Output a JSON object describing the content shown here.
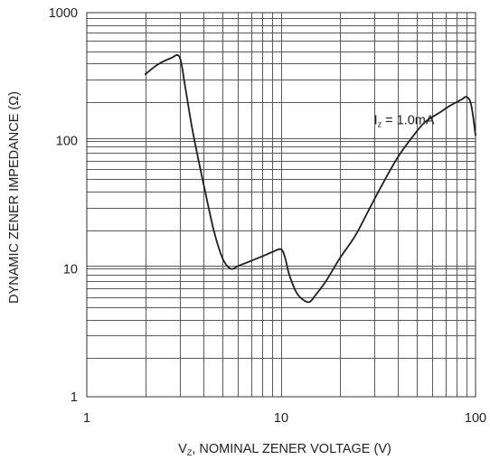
{
  "chart_data": {
    "type": "line",
    "title": "",
    "xlabel_main": "V",
    "xlabel_sub": "Z",
    "xlabel_rest": ", NOMINAL ZENER VOLTAGE (V)",
    "ylabel": "DYNAMIC ZENER IMPEDANCE (Ω)",
    "x_scale": "log",
    "y_scale": "log",
    "xlim": [
      1,
      100
    ],
    "ylim": [
      1,
      1000
    ],
    "grid": true,
    "x_ticks": [
      "1",
      "10",
      "100"
    ],
    "y_ticks": [
      "1",
      "10",
      "100",
      "1000"
    ],
    "annotation": {
      "main": "I",
      "sub": "z",
      "rest": " = 1.0mA"
    },
    "series": [
      {
        "x": [
          2.0,
          2.3,
          2.7,
          3.0,
          3.2,
          3.5,
          4.0,
          4.5,
          5.0,
          5.5,
          6.0,
          7.0,
          8.0,
          9.0,
          10.0,
          10.5,
          11.0,
          12.0,
          13.0,
          14.0,
          15.0,
          17.0,
          20.0,
          24.0,
          28.0,
          33.0,
          40.0,
          48.0,
          55.0,
          65.0,
          75.0,
          85.0,
          90.0,
          95.0,
          100.0
        ],
        "y": [
          330,
          390,
          440,
          450,
          270,
          120,
          45,
          20,
          12,
          10,
          10.5,
          11.5,
          12.5,
          13.5,
          14.2,
          12,
          9,
          6.5,
          5.7,
          5.5,
          6.2,
          8,
          12,
          18,
          28,
          45,
          75,
          110,
          140,
          165,
          190,
          210,
          220,
          190,
          110
        ]
      }
    ]
  }
}
